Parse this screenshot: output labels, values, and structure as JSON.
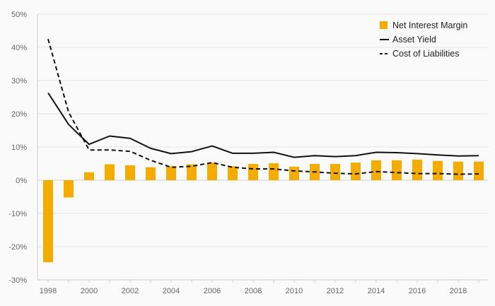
{
  "chart_data": {
    "type": "bar",
    "title": "",
    "xlabel": "",
    "ylabel": "",
    "categories": [
      "1998",
      "1999",
      "2000",
      "2001",
      "2002",
      "2003",
      "2004",
      "2005",
      "2006",
      "2007",
      "2008",
      "2009",
      "2010",
      "2011",
      "2012",
      "2013",
      "2014",
      "2015",
      "2016",
      "2017",
      "2018",
      "2019"
    ],
    "x_tick_labels": [
      "1998",
      "2000",
      "2002",
      "2004",
      "2006",
      "2008",
      "2010",
      "2012",
      "2014",
      "2016",
      "2018"
    ],
    "y_tick_labels": [
      "50%",
      "40%",
      "30%",
      "20%",
      "10%",
      "0%",
      "-10%",
      "-20%",
      "-30%"
    ],
    "y_ticks": [
      50,
      40,
      30,
      20,
      10,
      0,
      -10,
      -20,
      -30
    ],
    "ylim": [
      -30,
      50
    ],
    "grid": "horizontal",
    "legend_position": "top-right",
    "series": [
      {
        "name": "Net Interest Margin",
        "kind": "bar",
        "color": "#f5ac00",
        "values": [
          -24.7,
          -5.2,
          2.4,
          4.8,
          4.5,
          3.9,
          4.2,
          4.8,
          5.3,
          4.2,
          4.9,
          5.1,
          4.1,
          4.9,
          4.9,
          5.3,
          6.0,
          6.0,
          6.2,
          5.8,
          5.6,
          5.6
        ]
      },
      {
        "name": "Asset Yield",
        "kind": "line",
        "style": "solid",
        "color": "#111111",
        "values": [
          26.3,
          16.8,
          10.8,
          13.3,
          12.6,
          9.6,
          8.0,
          8.6,
          10.3,
          8.1,
          8.1,
          8.4,
          6.9,
          7.4,
          7.1,
          7.4,
          8.4,
          8.3,
          8.0,
          7.6,
          7.3,
          7.4
        ]
      },
      {
        "name": "Cost of Liabilities",
        "kind": "line",
        "style": "dashed",
        "color": "#111111",
        "values": [
          42.5,
          20.5,
          9.1,
          9.1,
          8.7,
          6.0,
          3.9,
          4.2,
          5.3,
          3.9,
          3.4,
          3.4,
          2.8,
          2.5,
          2.1,
          1.9,
          2.6,
          2.3,
          2.0,
          2.0,
          1.8,
          1.9
        ]
      }
    ]
  }
}
